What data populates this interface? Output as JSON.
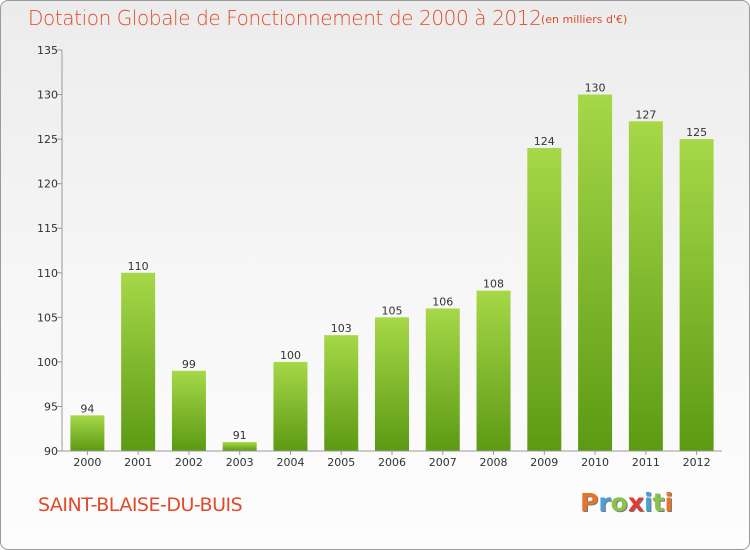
{
  "title": "Dotation Globale de Fonctionnement de 2000 à 2012",
  "subtitle": "(en milliers d'€)",
  "commune": "SAINT-BLAISE-DU-BUIS",
  "logo": {
    "letters": [
      "P",
      "r",
      "o",
      "x",
      "i",
      "t",
      "i"
    ],
    "colors": [
      "#e8732a",
      "#4a9fd8",
      "#8bc34a",
      "#e53935",
      "#4a9fd8",
      "#8bc34a",
      "#e8732a"
    ]
  },
  "colors": {
    "title": "#e04a28",
    "bar_light": "#a6d848",
    "bar_dark": "#5c9a14"
  },
  "chart_data": {
    "type": "bar",
    "categories": [
      "2000",
      "2001",
      "2002",
      "2003",
      "2004",
      "2005",
      "2006",
      "2007",
      "2008",
      "2009",
      "2010",
      "2011",
      "2012"
    ],
    "values": [
      94,
      110,
      99,
      91,
      100,
      103,
      105,
      106,
      108,
      124,
      130,
      127,
      125
    ],
    "ylim": [
      90,
      135
    ],
    "yticks": [
      90,
      95,
      100,
      105,
      110,
      115,
      120,
      125,
      130,
      135
    ],
    "grid": false
  }
}
